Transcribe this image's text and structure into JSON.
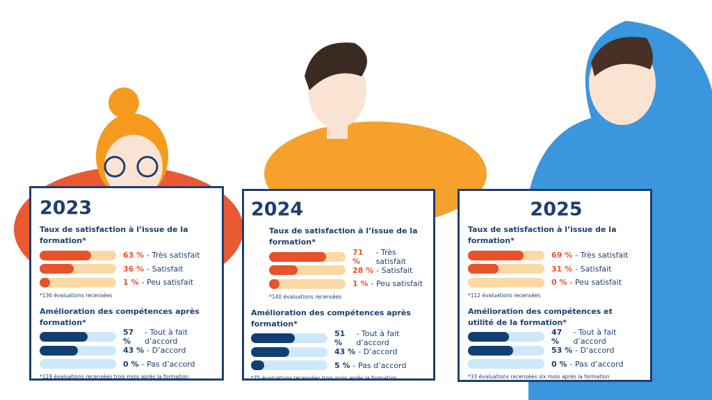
{
  "panels": [
    {
      "year": "2023",
      "sections": [
        {
          "title": "Taux de satisfaction à l’issue de la formation*",
          "color": "#e8522a",
          "track": "#fcd9a4",
          "items": [
            {
              "value": 63,
              "value_label": "63 %",
              "label": "- Très satisfait"
            },
            {
              "value": 36,
              "value_label": "36 %",
              "label": "- Satisfait"
            },
            {
              "value": 1,
              "value_label": "1 %",
              "label": "- Peu satisfait"
            }
          ],
          "note": "*136 évaluations recensées"
        },
        {
          "title": "Amélioration des compétences après formation*",
          "color": "#123f73",
          "track": "#cde8f8",
          "items": [
            {
              "value": 57,
              "value_label": "57 %",
              "label": "- Tout à fait d’accord"
            },
            {
              "value": 43,
              "value_label": "43 %",
              "label": "- D’accord"
            },
            {
              "value": 0,
              "value_label": "0 %",
              "label": "- Pas d’accord"
            }
          ],
          "note": "*119 évaluations recensées trois mois après la formation"
        }
      ]
    },
    {
      "year": "2024",
      "sections": [
        {
          "title": "Taux de satisfaction à l’issue de la formation*",
          "color": "#e8522a",
          "track": "#fcd9a4",
          "items": [
            {
              "value": 71,
              "value_label": "71 %",
              "label": "- Très satisfait"
            },
            {
              "value": 28,
              "value_label": "28 %",
              "label": "- Satisfait"
            },
            {
              "value": 1,
              "value_label": "1 %",
              "label": "- Peu satisfait"
            }
          ],
          "note": "*140 évaluations recensées"
        },
        {
          "title": "Amélioration des compétences après formation*",
          "color": "#123f73",
          "track": "#cde8f8",
          "items": [
            {
              "value": 51,
              "value_label": "51 %",
              "label": "- Tout à fait d’accord"
            },
            {
              "value": 43,
              "value_label": "43 %",
              "label": "- D’accord"
            },
            {
              "value": 5,
              "value_label": "5 %",
              "label": "- Pas d’accord"
            }
          ],
          "note": "*75 évaluations recensées trois mois après la formation"
        }
      ]
    },
    {
      "year": "2025",
      "sections": [
        {
          "title": "Taux de satisfaction à l’issue de la formation*",
          "color": "#e8522a",
          "track": "#fcd9a4",
          "items": [
            {
              "value": 69,
              "value_label": "69 %",
              "label": "- Très satisfait"
            },
            {
              "value": 31,
              "value_label": "31 %",
              "label": "- Satisfait"
            },
            {
              "value": 0,
              "value_label": "0 %",
              "label": "- Peu satisfait"
            }
          ],
          "note": "*112 évaluations recensées"
        },
        {
          "title": "Amélioration des compétences et utilité de la formation*",
          "color": "#123f73",
          "track": "#cde8f8",
          "items": [
            {
              "value": 47,
              "value_label": "47 %",
              "label": "- Tout à fait d’accord"
            },
            {
              "value": 53,
              "value_label": "53 %",
              "label": "- D’accord"
            },
            {
              "value": 0,
              "value_label": "0 %",
              "label": "- Pas d’accord"
            }
          ],
          "note": "*33 évaluations recensées six mois après la formation"
        }
      ]
    }
  ]
}
